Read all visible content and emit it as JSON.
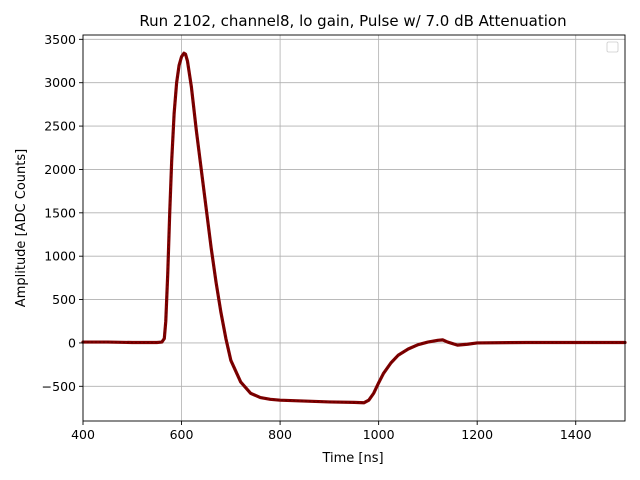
{
  "chart_data": {
    "type": "line",
    "title": "Run 2102, channel8, lo gain, Pulse w/ 7.0 dB Attenuation",
    "xlabel": "Time [ns]",
    "ylabel": "Amplitude [ADC Counts]",
    "xlim": [
      400,
      1500
    ],
    "ylim": [
      -900,
      3550
    ],
    "xticks": [
      400,
      600,
      800,
      1000,
      1200,
      1400
    ],
    "yticks": [
      -500,
      0,
      500,
      1000,
      1500,
      2000,
      2500,
      3000,
      3500
    ],
    "grid": true,
    "legend": "top-right (empty)",
    "line_color": "#800000",
    "series": [
      {
        "x": [
          400,
          450,
          500,
          550,
          560,
          565,
          568,
          572,
          576,
          580,
          585,
          590,
          595,
          600,
          605,
          608,
          612,
          616,
          620,
          625,
          630,
          640,
          650,
          660,
          670,
          680,
          690,
          700,
          720,
          740,
          760,
          780,
          800,
          850,
          900,
          950,
          970,
          980,
          990,
          1000,
          1010,
          1025,
          1040,
          1060,
          1080,
          1100,
          1120,
          1130,
          1140,
          1160,
          1180,
          1200,
          1300,
          1400,
          1500
        ],
        "y": [
          10,
          10,
          5,
          5,
          10,
          50,
          250,
          800,
          1500,
          2100,
          2650,
          3000,
          3200,
          3300,
          3340,
          3330,
          3250,
          3100,
          2950,
          2700,
          2450,
          2000,
          1550,
          1100,
          700,
          350,
          50,
          -200,
          -450,
          -580,
          -630,
          -650,
          -660,
          -670,
          -680,
          -685,
          -690,
          -660,
          -580,
          -460,
          -350,
          -230,
          -140,
          -70,
          -20,
          10,
          30,
          35,
          10,
          -25,
          -15,
          0,
          5,
          5,
          5
        ]
      }
    ]
  }
}
